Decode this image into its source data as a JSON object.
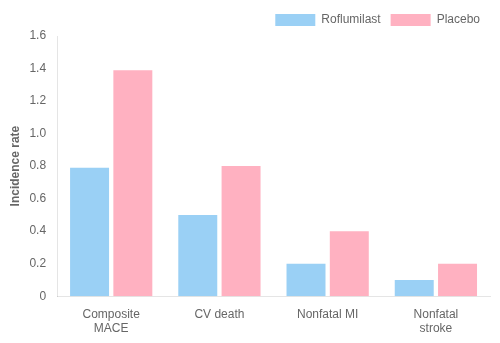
{
  "chart_data": {
    "type": "bar",
    "ylabel": "Incidence rate",
    "categories": [
      "Composite\nMACE",
      "CV death",
      "Nonfatal MI",
      "Nonfatal\nstroke"
    ],
    "series": [
      {
        "name": "Roflumilast",
        "values": [
          0.79,
          0.5,
          0.2,
          0.1
        ]
      },
      {
        "name": "Placebo",
        "values": [
          1.39,
          0.8,
          0.4,
          0.2
        ]
      }
    ],
    "ylim": [
      0,
      1.6
    ],
    "yticks": [
      0,
      0.2,
      0.4,
      0.6,
      0.8,
      {
        "value": 1.0,
        "label": "1.0"
      },
      1.2,
      1.4,
      1.6
    ],
    "grid": false,
    "legend": "upper right"
  }
}
